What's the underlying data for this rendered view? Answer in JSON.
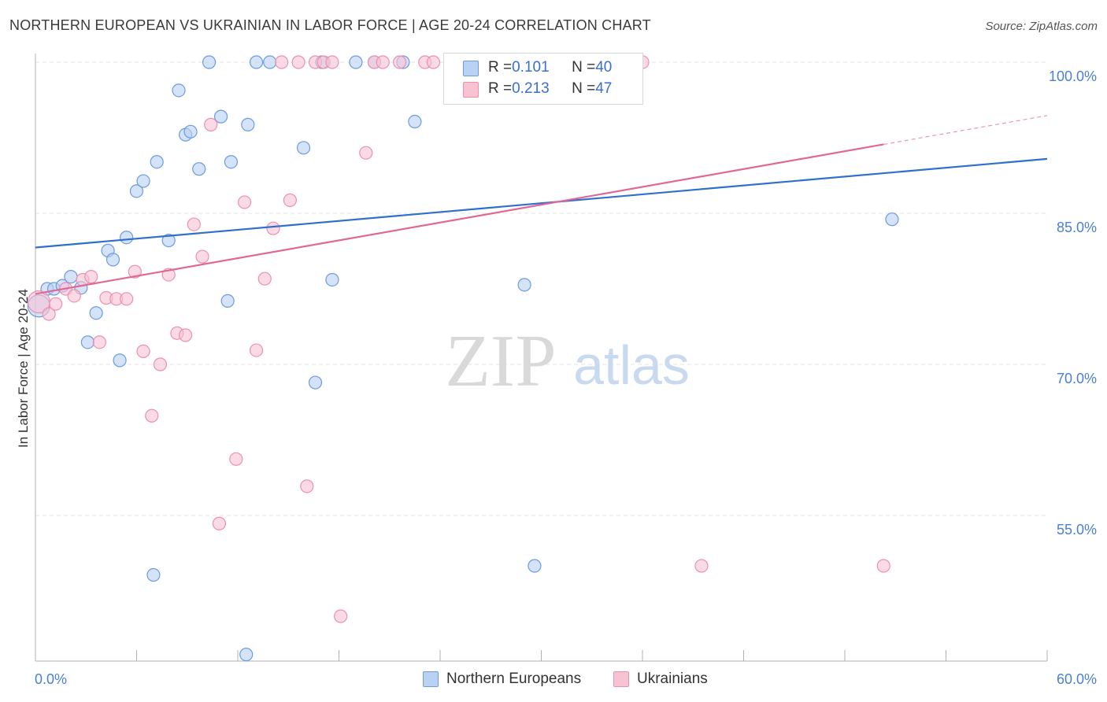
{
  "title": "NORTHERN EUROPEAN VS UKRAINIAN IN LABOR FORCE | AGE 20-24 CORRELATION CHART",
  "source": "Source: ZipAtlas.com",
  "watermark": {
    "zip": "ZIP",
    "atlas": "atlas"
  },
  "legend_top": {
    "rows": [
      {
        "r_label": "R = ",
        "r_value": "0.101",
        "n_label": "N = ",
        "n_value": "40"
      },
      {
        "r_label": "R = ",
        "r_value": "0.213",
        "n_label": "N = ",
        "n_value": "47"
      }
    ]
  },
  "legend_bottom": {
    "items": [
      "Northern Europeans",
      "Ukrainians"
    ]
  },
  "colors": {
    "blue_fill": "#b9d1f3",
    "blue_stroke": "#6b9be0",
    "blue_line": "#2f6fce",
    "pink_fill": "#f7c3d3",
    "pink_stroke": "#ec90ae",
    "pink_line": "#e06894",
    "axis_text": "#4a7fd4",
    "grid": "#e3e3e3"
  },
  "chart_data": {
    "type": "scatter",
    "xlabel": "",
    "ylabel": "In Labor Force | Age 20-24",
    "xlim": [
      0,
      60
    ],
    "ylim": [
      40,
      102
    ],
    "x_tick_labels": [
      {
        "value": 0,
        "label": "0.0%"
      },
      {
        "value": 60,
        "label": "60.0%"
      }
    ],
    "y_tick_labels": [
      {
        "value": 100,
        "label": "100.0%"
      },
      {
        "value": 85,
        "label": "85.0%"
      },
      {
        "value": 70,
        "label": "70.0%"
      },
      {
        "value": 55,
        "label": "55.0%"
      }
    ],
    "grid": true,
    "series": [
      {
        "name": "Northern Europeans",
        "color": "#b9d1f3",
        "trend": {
          "x": [
            0,
            60
          ],
          "y": [
            81.6,
            90.4
          ],
          "dashed_from": null
        },
        "points": [
          [
            0.2,
            75.8
          ],
          [
            0.7,
            77.5
          ],
          [
            1.1,
            77.5
          ],
          [
            1.6,
            77.8
          ],
          [
            2.1,
            78.7
          ],
          [
            2.7,
            77.6
          ],
          [
            3.6,
            75.1
          ],
          [
            3.1,
            72.2
          ],
          [
            4.3,
            81.3
          ],
          [
            4.6,
            80.4
          ],
          [
            5.4,
            82.6
          ],
          [
            5.0,
            70.4
          ],
          [
            6.0,
            87.2
          ],
          [
            6.4,
            88.2
          ],
          [
            7.2,
            90.1
          ],
          [
            7.9,
            82.3
          ],
          [
            8.5,
            97.2
          ],
          [
            8.9,
            92.8
          ],
          [
            9.2,
            93.1
          ],
          [
            9.7,
            89.4
          ],
          [
            10.3,
            100.0
          ],
          [
            11.0,
            94.6
          ],
          [
            11.4,
            76.3
          ],
          [
            11.6,
            90.1
          ],
          [
            12.6,
            93.8
          ],
          [
            13.1,
            100.0
          ],
          [
            13.9,
            100.0
          ],
          [
            15.9,
            91.5
          ],
          [
            16.6,
            68.2
          ],
          [
            17.0,
            100.0
          ],
          [
            17.6,
            78.4
          ],
          [
            19.0,
            100.0
          ],
          [
            20.1,
            100.0
          ],
          [
            21.8,
            100.0
          ],
          [
            22.5,
            94.1
          ],
          [
            29.0,
            77.9
          ],
          [
            29.6,
            50.0
          ],
          [
            7.0,
            49.1
          ],
          [
            12.5,
            41.2
          ],
          [
            50.8,
            84.4
          ]
        ]
      },
      {
        "name": "Ukrainians",
        "color": "#f7c3d3",
        "trend": {
          "x": [
            0,
            60
          ],
          "y": [
            77.0,
            94.7
          ],
          "dashed_from": 50.3
        },
        "points": [
          [
            0.2,
            76.2
          ],
          [
            0.8,
            75.0
          ],
          [
            1.2,
            76.0
          ],
          [
            1.8,
            77.5
          ],
          [
            2.3,
            76.8
          ],
          [
            2.8,
            78.4
          ],
          [
            3.3,
            78.7
          ],
          [
            3.8,
            72.2
          ],
          [
            4.2,
            76.6
          ],
          [
            4.8,
            76.5
          ],
          [
            5.4,
            76.5
          ],
          [
            5.9,
            79.2
          ],
          [
            6.4,
            71.3
          ],
          [
            6.9,
            64.9
          ],
          [
            7.4,
            70.0
          ],
          [
            7.9,
            78.9
          ],
          [
            8.4,
            73.1
          ],
          [
            8.9,
            72.9
          ],
          [
            9.4,
            83.9
          ],
          [
            9.9,
            80.7
          ],
          [
            10.4,
            93.8
          ],
          [
            10.9,
            54.2
          ],
          [
            11.9,
            60.6
          ],
          [
            12.4,
            86.1
          ],
          [
            13.1,
            71.4
          ],
          [
            13.6,
            78.5
          ],
          [
            14.1,
            83.5
          ],
          [
            14.6,
            100.0
          ],
          [
            15.1,
            86.3
          ],
          [
            15.6,
            100.0
          ],
          [
            16.1,
            57.9
          ],
          [
            16.6,
            100.0
          ],
          [
            17.1,
            100.0
          ],
          [
            17.6,
            100.0
          ],
          [
            18.1,
            45.0
          ],
          [
            19.6,
            91.0
          ],
          [
            20.1,
            100.0
          ],
          [
            20.6,
            100.0
          ],
          [
            21.6,
            100.0
          ],
          [
            23.1,
            100.0
          ],
          [
            23.6,
            100.0
          ],
          [
            31.0,
            100.0
          ],
          [
            32.0,
            100.0
          ],
          [
            34.0,
            100.0
          ],
          [
            36.0,
            100.0
          ],
          [
            39.5,
            50.0
          ],
          [
            50.3,
            50.0
          ]
        ]
      }
    ]
  }
}
